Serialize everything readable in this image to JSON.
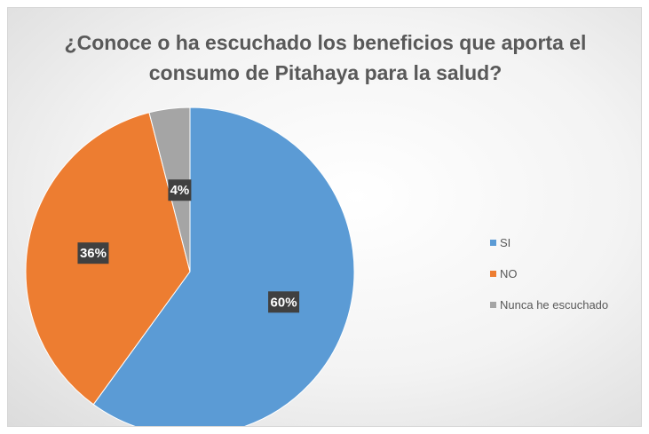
{
  "chart_data": {
    "type": "pie",
    "title_lines": [
      "¿Conoce o ha escuchado los beneficios que aporta el",
      "consumo de Pitahaya para la salud?"
    ],
    "categories": [
      "SI",
      "NO",
      "Nunca he escuchado"
    ],
    "values": [
      60,
      36,
      4
    ],
    "value_labels": [
      "60%",
      "36%",
      "4%"
    ],
    "colors": [
      "#5B9BD5",
      "#ED7D31",
      "#A5A5A5"
    ],
    "legend_position": "right",
    "start_angle_deg": 0,
    "direction": "clockwise"
  }
}
